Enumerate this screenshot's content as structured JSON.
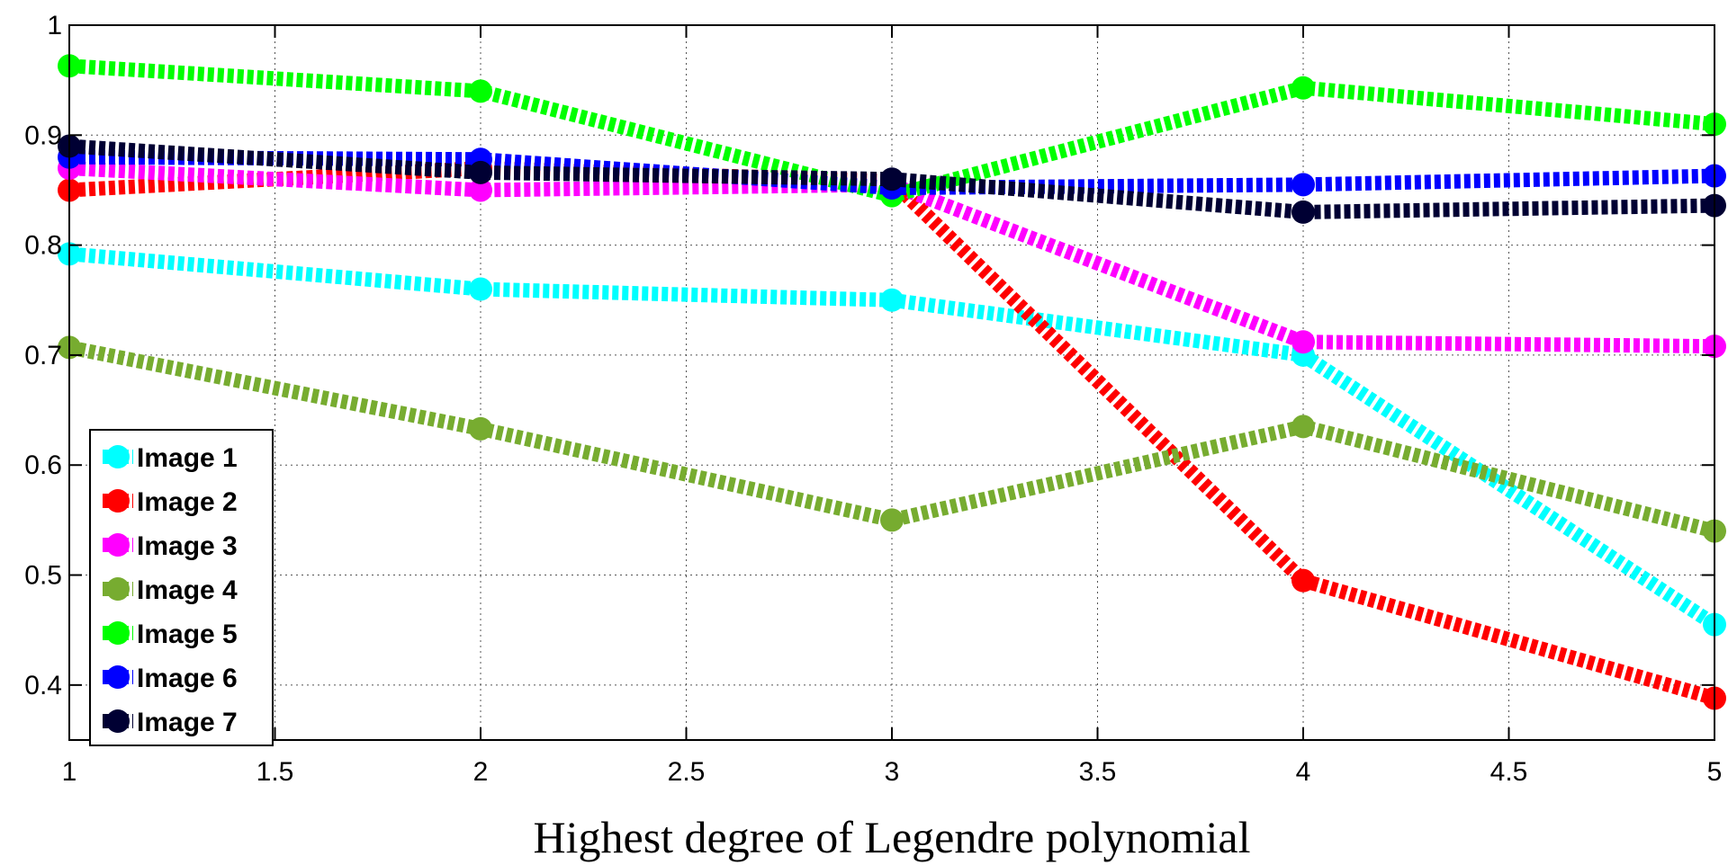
{
  "chart_data": {
    "type": "line",
    "title": "",
    "xlabel": "Highest degree of Legendre polynomial",
    "ylabel": "",
    "xlim": [
      1,
      5
    ],
    "ylim": [
      0.35,
      1.0
    ],
    "xticks": [
      1,
      1.5,
      2,
      2.5,
      3,
      3.5,
      4,
      4.5,
      5
    ],
    "xtick_labels": [
      "1",
      "1.5",
      "2",
      "2.5",
      "3",
      "3.5",
      "4",
      "4.5",
      "5"
    ],
    "yticks": [
      0.4,
      0.5,
      0.6,
      0.7,
      0.8,
      0.9,
      1.0
    ],
    "ytick_labels": [
      "0.4",
      "0.5",
      "0.6",
      "0.7",
      "0.8",
      "0.9",
      "1"
    ],
    "grid": true,
    "legend_position": "bottom-left",
    "x": [
      1,
      2,
      3,
      4,
      5
    ],
    "series": [
      {
        "name": "Image 1",
        "color": "#00ffff",
        "values": [
          0.792,
          0.76,
          0.75,
          0.7,
          0.455
        ]
      },
      {
        "name": "Image 2",
        "color": "#ff0000",
        "values": [
          0.85,
          0.87,
          0.858,
          0.495,
          0.388
        ]
      },
      {
        "name": "Image 3",
        "color": "#ff00ff",
        "values": [
          0.87,
          0.85,
          0.855,
          0.712,
          0.708
        ]
      },
      {
        "name": "Image 4",
        "color": "#77ac30",
        "values": [
          0.707,
          0.633,
          0.55,
          0.635,
          0.54
        ]
      },
      {
        "name": "Image 5",
        "color": "#00ff00",
        "values": [
          0.963,
          0.94,
          0.845,
          0.943,
          0.91
        ]
      },
      {
        "name": "Image 6",
        "color": "#0000ff",
        "values": [
          0.88,
          0.878,
          0.852,
          0.855,
          0.863
        ]
      },
      {
        "name": "Image 7",
        "color": "#000033",
        "values": [
          0.89,
          0.866,
          0.86,
          0.83,
          0.836
        ]
      }
    ]
  }
}
